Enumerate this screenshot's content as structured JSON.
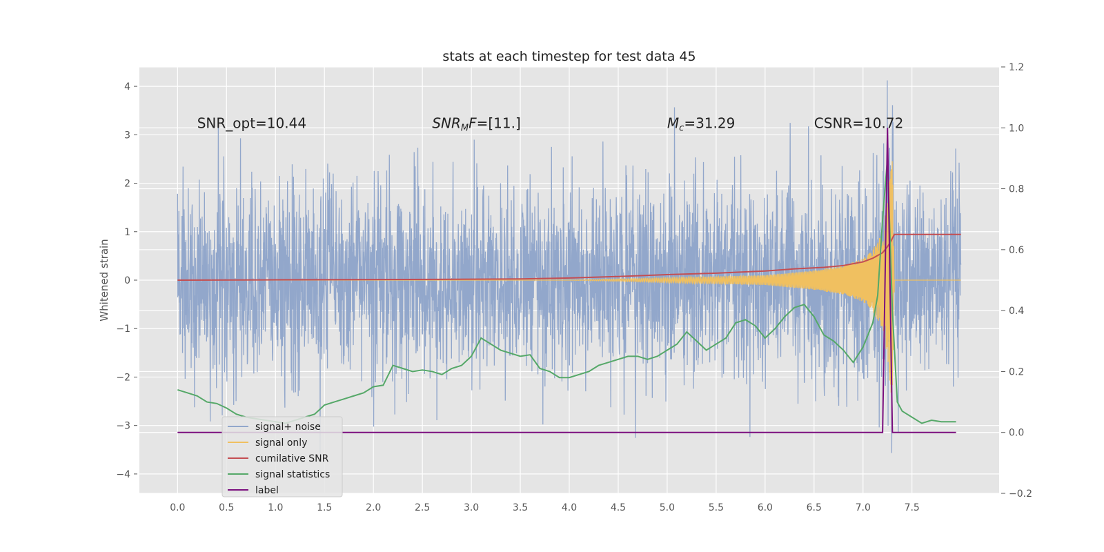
{
  "chart_data": {
    "type": "line",
    "title": "stats at each timestep for test data 45",
    "ylabel": "Whitened strain",
    "y2label": "",
    "xlim": [
      -0.39,
      8.39
    ],
    "ylim": [
      -4.4,
      4.4
    ],
    "y2lim": [
      -0.2,
      1.2
    ],
    "xticks": [
      "0.0",
      "0.5",
      "1.0",
      "1.5",
      "2.0",
      "2.5",
      "3.0",
      "3.5",
      "4.0",
      "4.5",
      "5.0",
      "5.5",
      "6.0",
      "6.5",
      "7.0",
      "7.5"
    ],
    "yticks": [
      "4",
      "3",
      "2",
      "1",
      "0",
      "−1",
      "−2",
      "−3",
      "−4"
    ],
    "y2ticks": [
      "1.2",
      "1.0",
      "0.8",
      "0.6",
      "0.4",
      "0.2",
      "0.0",
      "−0.2"
    ],
    "grid": true,
    "legend_position": "lower-left",
    "annotations": [
      {
        "text": "SNR_opt=10.44",
        "x": 0.2,
        "y": 3.2
      },
      {
        "text_main": "SNR",
        "text_sub": "M",
        "text_rest": "F=[11.]",
        "x": 2.6,
        "y": 3.2
      },
      {
        "text_main": "M",
        "text_sub": "c",
        "text_rest": "=31.29",
        "x": 5.0,
        "y": 3.2
      },
      {
        "text": "CSNR=10.72",
        "x": 6.5,
        "y": 3.2
      }
    ],
    "series": [
      {
        "name": "signal+ noise",
        "color": "#92a7cb",
        "axis": "left",
        "noise_std": 1.0,
        "t_start": 0.0,
        "t_end": 8.0
      },
      {
        "name": "signal only",
        "color": "#f0c060",
        "axis": "left",
        "envelope_t": [
          0.0,
          4.0,
          5.0,
          6.0,
          6.5,
          6.8,
          7.0,
          7.1,
          7.2,
          7.25,
          7.3,
          7.32,
          8.0
        ],
        "envelope_a": [
          0.0,
          0.0,
          0.05,
          0.1,
          0.2,
          0.3,
          0.45,
          0.65,
          1.0,
          1.6,
          2.6,
          0.0,
          0.0
        ]
      },
      {
        "name": "cumilative SNR",
        "color": "#c44e52",
        "axis": "right",
        "x": [
          0.0,
          1.0,
          2.0,
          3.0,
          3.5,
          4.0,
          4.5,
          5.0,
          5.5,
          6.0,
          6.3,
          6.6,
          6.8,
          7.0,
          7.1,
          7.2,
          7.25,
          7.28,
          7.32,
          8.0
        ],
        "y": [
          0.5,
          0.501,
          0.502,
          0.503,
          0.504,
          0.507,
          0.512,
          0.518,
          0.523,
          0.53,
          0.537,
          0.542,
          0.548,
          0.56,
          0.572,
          0.59,
          0.61,
          0.625,
          0.65,
          0.65
        ]
      },
      {
        "name": "signal statistics",
        "color": "#55a868",
        "axis": "right",
        "x": [
          0.0,
          0.1,
          0.2,
          0.3,
          0.4,
          0.5,
          0.6,
          0.7,
          0.8,
          0.9,
          1.0,
          1.1,
          1.2,
          1.3,
          1.4,
          1.5,
          1.6,
          1.7,
          1.8,
          1.9,
          2.0,
          2.1,
          2.2,
          2.3,
          2.4,
          2.5,
          2.6,
          2.7,
          2.8,
          2.9,
          3.0,
          3.1,
          3.2,
          3.3,
          3.4,
          3.5,
          3.6,
          3.7,
          3.8,
          3.9,
          4.0,
          4.1,
          4.2,
          4.3,
          4.4,
          4.5,
          4.6,
          4.7,
          4.8,
          4.9,
          5.0,
          5.1,
          5.2,
          5.3,
          5.4,
          5.5,
          5.6,
          5.7,
          5.8,
          5.9,
          6.0,
          6.1,
          6.2,
          6.3,
          6.4,
          6.5,
          6.6,
          6.7,
          6.8,
          6.9,
          7.0,
          7.1,
          7.15,
          7.2,
          7.25,
          7.3,
          7.35,
          7.4,
          7.5,
          7.6,
          7.7,
          7.8,
          7.9,
          7.95
        ],
        "y": [
          0.14,
          0.13,
          0.12,
          0.1,
          0.095,
          0.08,
          0.06,
          0.05,
          0.045,
          0.04,
          0.035,
          0.03,
          0.04,
          0.05,
          0.06,
          0.09,
          0.1,
          0.11,
          0.12,
          0.13,
          0.15,
          0.155,
          0.22,
          0.21,
          0.2,
          0.205,
          0.2,
          0.19,
          0.21,
          0.22,
          0.25,
          0.31,
          0.29,
          0.27,
          0.26,
          0.25,
          0.255,
          0.21,
          0.2,
          0.18,
          0.18,
          0.19,
          0.2,
          0.22,
          0.23,
          0.24,
          0.25,
          0.25,
          0.24,
          0.25,
          0.27,
          0.29,
          0.33,
          0.3,
          0.27,
          0.29,
          0.31,
          0.36,
          0.37,
          0.35,
          0.31,
          0.34,
          0.38,
          0.41,
          0.42,
          0.38,
          0.32,
          0.3,
          0.27,
          0.23,
          0.28,
          0.36,
          0.45,
          0.7,
          0.9,
          0.4,
          0.1,
          0.07,
          0.05,
          0.03,
          0.04,
          0.035,
          0.035,
          0.035
        ]
      },
      {
        "name": "label",
        "color": "#7b0f7e",
        "axis": "right",
        "x": [
          0.0,
          7.2,
          7.25,
          7.3,
          7.95
        ],
        "y": [
          0.0,
          0.0,
          1.0,
          0.0,
          0.0
        ]
      }
    ]
  }
}
